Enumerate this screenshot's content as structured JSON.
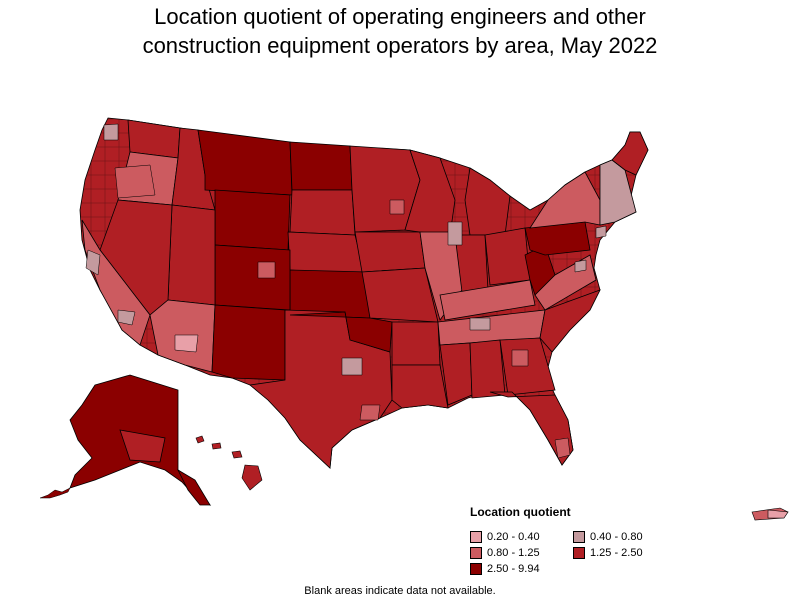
{
  "title_line1": "Location quotient of operating engineers and other",
  "title_line2": "construction equipment operators by area, May 2022",
  "legend": {
    "title": "Location quotient",
    "items": [
      {
        "label": "0.20 - 0.40",
        "color": "#e8a0a8"
      },
      {
        "label": "0.40 - 0.80",
        "color": "#c49a9e"
      },
      {
        "label": "0.80 - 1.25",
        "color": "#cc5b60"
      },
      {
        "label": "1.25 - 2.50",
        "color": "#b01f24"
      },
      {
        "label": "2.50 - 9.94",
        "color": "#8b0000"
      }
    ]
  },
  "footnote": "Blank areas indicate data not available.",
  "colors": {
    "lq_0_20_0_40": "#e8a0a8",
    "lq_0_40_0_80": "#c49a9e",
    "lq_0_80_1_25": "#cc5b60",
    "lq_1_25_2_50": "#b01f24",
    "lq_2_50_9_94": "#8b0000",
    "border": "#000000"
  }
}
